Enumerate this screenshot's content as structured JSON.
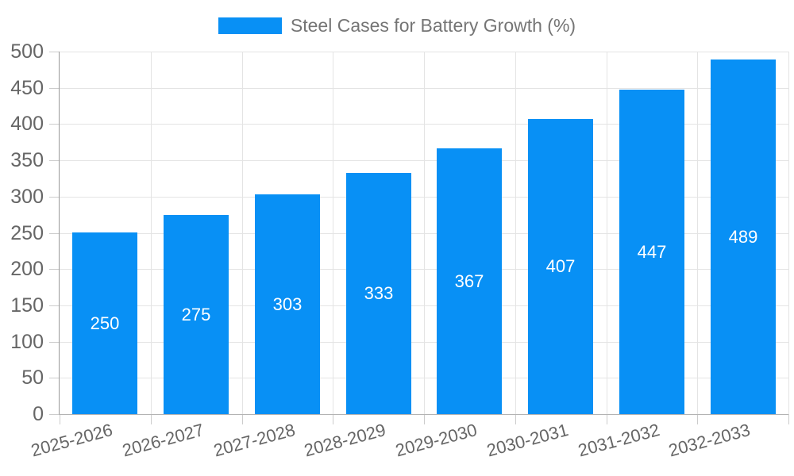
{
  "legend": {
    "label": "Steel Cases for Battery Growth (%)"
  },
  "chart_data": {
    "type": "bar",
    "title": "Steel Cases for Battery Growth (%)",
    "categories": [
      "2025-2026",
      "2026-2027",
      "2027-2028",
      "2028-2029",
      "2029-2030",
      "2030-2031",
      "2031-2032",
      "2032-2033"
    ],
    "values": [
      250,
      275,
      303,
      333,
      367,
      407,
      447,
      489
    ],
    "series": [
      {
        "name": "Steel Cases for Battery Growth (%)",
        "values": [
          250,
          275,
          303,
          333,
          367,
          407,
          447,
          489
        ]
      }
    ],
    "xlabel": "",
    "ylabel": "",
    "ylim": [
      0,
      500
    ],
    "ytick_step": 50,
    "yticks": [
      0,
      50,
      100,
      150,
      200,
      250,
      300,
      350,
      400,
      450,
      500
    ],
    "grid": true,
    "legend_position": "top-center",
    "value_labels": "inside-center",
    "x_label_rotation_deg": -15,
    "colors": {
      "bar": "#0890f5",
      "value_label": "#ffffff",
      "axis_label": "#666666",
      "title": "#757575",
      "gridline": "#e4e4e4",
      "y_axis_line": "#999999",
      "x_axis_line": "#b3b3b3",
      "tick": "#cccccc"
    }
  }
}
